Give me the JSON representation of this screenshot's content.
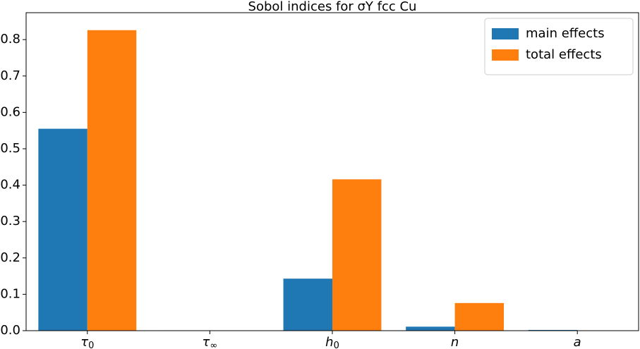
{
  "chart_data": {
    "type": "bar",
    "title": "Sobol indices for σY fcc Cu",
    "categories": [
      "τ0",
      "τ∞",
      "h0",
      "n",
      "a"
    ],
    "series": [
      {
        "name": "main effects",
        "color": "#1f77b4",
        "values": [
          0.555,
          0.001,
          0.143,
          0.011,
          0.002
        ]
      },
      {
        "name": "total effects",
        "color": "#ff7f0e",
        "values": [
          0.826,
          0.0,
          0.416,
          0.076,
          0.0
        ]
      }
    ],
    "ylim": [
      0,
      0.874
    ],
    "yticks": [
      {
        "value": 0,
        "label": "0.0"
      },
      0.1,
      0.2,
      0.3,
      0.4,
      0.5,
      0.6,
      0.7,
      0.8
    ],
    "legend": "upper right",
    "grid": false
  }
}
